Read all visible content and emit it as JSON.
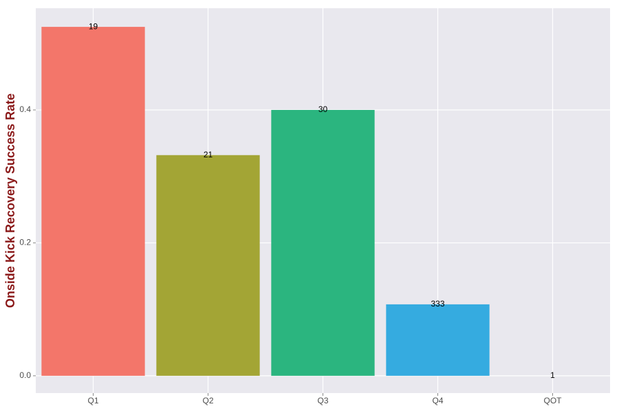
{
  "chart_data": {
    "type": "bar",
    "y_label": "Onside Kick Recovery Success Rate",
    "categories": [
      "Q1",
      "Q2",
      "Q3",
      "Q4",
      "QOT"
    ],
    "values": [
      0.525,
      0.332,
      0.4,
      0.1075,
      0
    ],
    "bar_labels": [
      "19",
      "21",
      "30",
      "333",
      "1"
    ],
    "colors": [
      "#f3766a",
      "#a3a535",
      "#2bb57f",
      "#35abe0",
      "#e76bf3"
    ],
    "ylim": [
      -0.026,
      0.553
    ],
    "yticks": [
      {
        "value": 0,
        "label": "0.0"
      },
      0.2,
      0.4
    ],
    "grid": true
  }
}
